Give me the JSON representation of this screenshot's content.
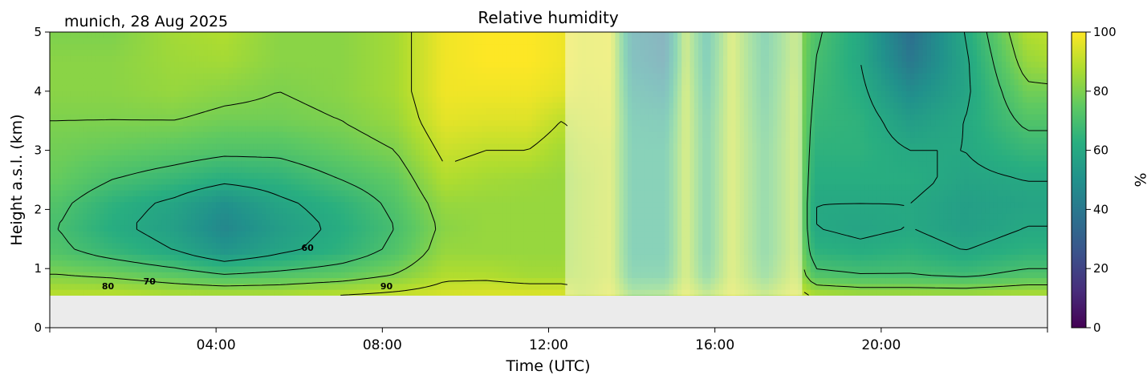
{
  "chart_data": {
    "type": "heatmap",
    "title": "Relative humidity",
    "subtitle": "munich, 28 Aug 2025",
    "xlabel": "Time (UTC)",
    "ylabel": "Height a.s.l. (km)",
    "xlim": [
      0,
      24
    ],
    "ylim": [
      0,
      5
    ],
    "x_ticks": [
      {
        "value": 4,
        "label": "04:00"
      },
      {
        "value": 8,
        "label": "08:00"
      },
      {
        "value": 12,
        "label": "12:00"
      },
      {
        "value": 16,
        "label": "16:00"
      },
      {
        "value": 20,
        "label": "20:00"
      }
    ],
    "y_ticks": [
      {
        "value": 0,
        "label": "0"
      },
      {
        "value": 1,
        "label": "1"
      },
      {
        "value": 2,
        "label": "2"
      },
      {
        "value": 3,
        "label": "3"
      },
      {
        "value": 4,
        "label": "4"
      },
      {
        "value": 5,
        "label": "5"
      }
    ],
    "colorbar": {
      "label": "%",
      "range": [
        0,
        100
      ],
      "colormap": "viridis",
      "ticks": [
        {
          "value": 0,
          "label": "0"
        },
        {
          "value": 20,
          "label": "20"
        },
        {
          "value": 40,
          "label": "40"
        },
        {
          "value": 60,
          "label": "60"
        },
        {
          "value": 80,
          "label": "80"
        },
        {
          "value": 100,
          "label": "100"
        }
      ]
    },
    "no_data_below_km": 0.55,
    "masked_intervals_hours": [
      [
        12.4,
        18.1
      ]
    ],
    "contour_levels": [
      60,
      70,
      80,
      90
    ],
    "contour_labels": [
      {
        "text": "80",
        "x": 1.4,
        "y": 0.65
      },
      {
        "text": "70",
        "x": 2.4,
        "y": 0.73
      },
      {
        "text": "60",
        "x": 6.2,
        "y": 1.3
      },
      {
        "text": "90",
        "x": 8.1,
        "y": 0.65
      }
    ],
    "profiles": [
      {
        "t": 0.2,
        "rh": [
          90,
          80,
          72,
          70,
          72,
          76,
          78,
          80,
          82,
          82,
          80
        ]
      },
      {
        "t": 1.5,
        "rh": [
          90,
          78,
          66,
          62,
          64,
          70,
          76,
          80,
          82,
          82,
          80
        ]
      },
      {
        "t": 3.0,
        "rh": [
          88,
          74,
          60,
          56,
          58,
          66,
          74,
          80,
          84,
          85,
          86
        ]
      },
      {
        "t": 4.2,
        "rh": [
          88,
          70,
          52,
          46,
          50,
          62,
          72,
          78,
          82,
          86,
          88
        ]
      },
      {
        "t": 5.5,
        "rh": [
          88,
          72,
          58,
          55,
          58,
          64,
          72,
          78,
          80,
          82,
          82
        ]
      },
      {
        "t": 7.0,
        "rh": [
          90,
          75,
          64,
          62,
          64,
          70,
          76,
          80,
          82,
          82,
          82
        ]
      },
      {
        "t": 8.3,
        "rh": [
          92,
          80,
          72,
          70,
          72,
          75,
          80,
          84,
          86,
          86,
          86
        ]
      },
      {
        "t": 9.5,
        "rh": [
          94,
          88,
          84,
          82,
          84,
          88,
          92,
          96,
          98,
          98,
          98
        ]
      },
      {
        "t": 10.5,
        "rh": [
          95,
          88,
          84,
          84,
          84,
          86,
          90,
          95,
          98,
          100,
          100
        ]
      },
      {
        "t": 11.5,
        "rh": [
          95,
          86,
          84,
          84,
          84,
          85,
          90,
          95,
          98,
          100,
          100
        ]
      },
      {
        "t": 12.3,
        "rh": [
          95,
          86,
          84,
          84,
          84,
          84,
          86,
          90,
          96,
          98,
          98
        ]
      },
      {
        "t": 12.8,
        "rh": [
          90,
          88,
          88,
          88,
          88,
          88,
          90,
          92,
          94,
          95,
          95
        ]
      },
      {
        "t": 13.5,
        "rh": [
          95,
          92,
          92,
          92,
          92,
          92,
          92,
          94,
          95,
          96,
          96
        ]
      },
      {
        "t": 14.0,
        "rh": [
          80,
          66,
          62,
          62,
          62,
          62,
          62,
          60,
          55,
          50,
          48
        ]
      },
      {
        "t": 14.8,
        "rh": [
          82,
          66,
          62,
          62,
          62,
          62,
          62,
          58,
          50,
          42,
          40
        ]
      },
      {
        "t": 15.3,
        "rh": [
          95,
          90,
          90,
          90,
          90,
          90,
          90,
          90,
          90,
          88,
          88
        ]
      },
      {
        "t": 15.8,
        "rh": [
          85,
          70,
          66,
          66,
          66,
          66,
          66,
          65,
          62,
          60,
          58
        ]
      },
      {
        "t": 16.4,
        "rh": [
          95,
          92,
          92,
          92,
          92,
          92,
          92,
          92,
          92,
          92,
          92
        ]
      },
      {
        "t": 17.2,
        "rh": [
          86,
          74,
          70,
          70,
          70,
          70,
          70,
          68,
          66,
          65,
          64
        ]
      },
      {
        "t": 17.9,
        "rh": [
          95,
          90,
          88,
          88,
          88,
          88,
          88,
          88,
          88,
          86,
          86
        ]
      },
      {
        "t": 18.4,
        "rh": [
          88,
          72,
          64,
          60,
          60,
          62,
          64,
          66,
          68,
          70,
          72
        ]
      },
      {
        "t": 19.5,
        "rh": [
          86,
          70,
          62,
          58,
          60,
          62,
          64,
          64,
          62,
          60,
          60
        ]
      },
      {
        "t": 20.7,
        "rh": [
          86,
          70,
          64,
          60,
          60,
          62,
          60,
          55,
          48,
          40,
          36
        ]
      },
      {
        "t": 22.0,
        "rh": [
          86,
          68,
          60,
          56,
          56,
          58,
          60,
          60,
          58,
          58,
          60
        ]
      },
      {
        "t": 23.5,
        "rh": [
          88,
          72,
          64,
          60,
          58,
          60,
          66,
          72,
          78,
          84,
          88
        ]
      },
      {
        "t": 24.0,
        "rh": [
          88,
          72,
          64,
          60,
          58,
          60,
          66,
          72,
          78,
          86,
          90
        ]
      }
    ],
    "profile_heights_km": [
      0.55,
      0.9,
      1.3,
      1.7,
      2.1,
      2.5,
      3.0,
      3.5,
      4.0,
      4.5,
      5.0
    ]
  }
}
